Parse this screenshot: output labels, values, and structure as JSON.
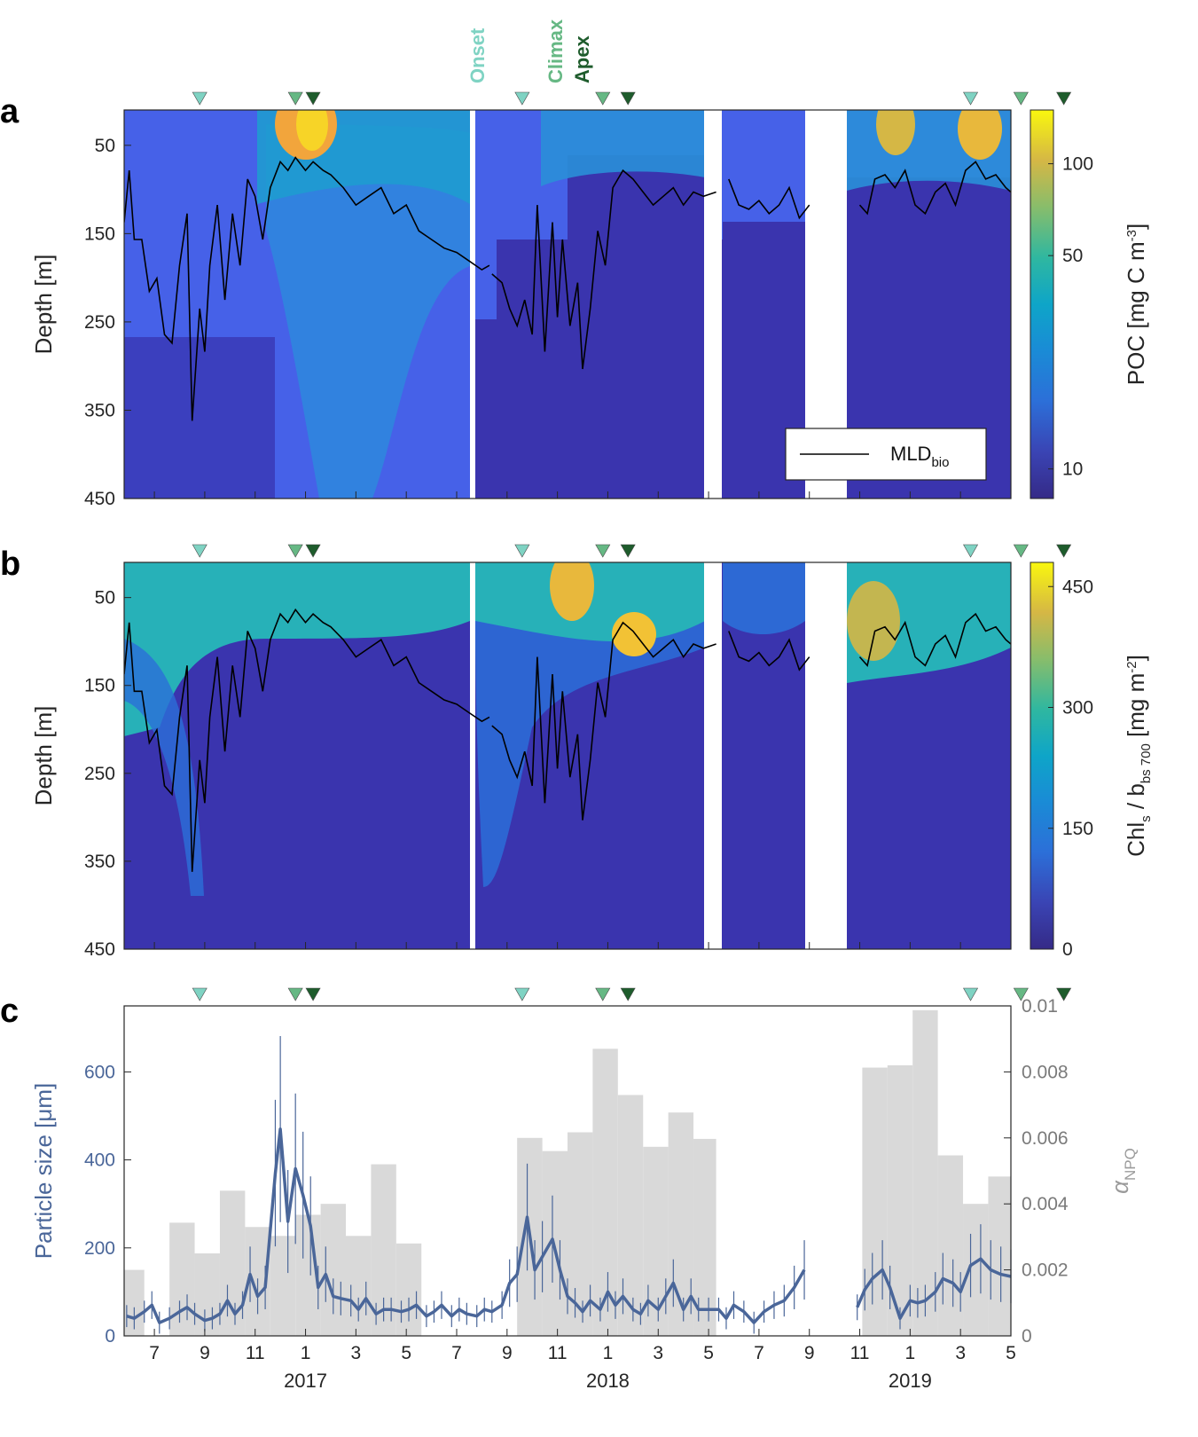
{
  "chart_data": [
    {
      "panel": "a",
      "type": "heatmap",
      "xlabel": "",
      "ylabel": "Depth [m]",
      "y_ticks": [
        "50",
        "150",
        "250",
        "350",
        "450"
      ],
      "ylim": [
        0,
        450
      ],
      "colorbar": {
        "label": "POC [mg C m",
        "label_sup": "-3",
        "label_end": "]",
        "ticks": [
          "100",
          "50",
          "10"
        ],
        "scale": "log",
        "range": [
          8,
          150
        ]
      },
      "legend": {
        "text": "MLD",
        "sub": "bio"
      },
      "event_labels": {
        "onset": "Onset",
        "climax": "Climax",
        "apex": "Apex"
      }
    },
    {
      "panel": "b",
      "type": "heatmap",
      "xlabel": "",
      "ylabel": "Depth [m]",
      "y_ticks": [
        "50",
        "150",
        "250",
        "350",
        "450"
      ],
      "ylim": [
        0,
        450
      ],
      "colorbar": {
        "label_parts": [
          "Chl",
          "s",
          " / b",
          "bs 700",
          " [mg m",
          "-2",
          "]"
        ],
        "ticks": [
          "450",
          "300",
          "150",
          "0"
        ],
        "range": [
          0,
          480
        ]
      }
    },
    {
      "panel": "c",
      "type": "bar",
      "ylabel_left": "Particle size [μm]",
      "ylabel_right_main": "α",
      "ylabel_right_sub": "NPQ",
      "y_ticks_left": [
        "0",
        "200",
        "400",
        "600"
      ],
      "y_ticks_right": [
        "0",
        "0.002",
        "0.004",
        "0.006",
        "0.008",
        "0.01"
      ],
      "ylim_left": [
        0,
        750
      ],
      "ylim_right": [
        0,
        0.01
      ],
      "x_ticks": [
        "7",
        "9",
        "11",
        "1",
        "3",
        "5",
        "7",
        "9",
        "11",
        "1",
        "3",
        "5",
        "7",
        "9",
        "11",
        "1",
        "3",
        "5"
      ],
      "years": [
        "2017",
        "2018",
        "2019"
      ],
      "npq_bars": [
        {
          "start": 5.8,
          "end": 6.6,
          "value": 0.002
        },
        {
          "start": 7.6,
          "end": 8.6,
          "value": 0.00343
        },
        {
          "start": 8.6,
          "end": 9.6,
          "value": 0.0025
        },
        {
          "start": 9.6,
          "end": 10.6,
          "value": 0.0044
        },
        {
          "start": 10.6,
          "end": 11.6,
          "value": 0.0033
        },
        {
          "start": 11.6,
          "end": 12.6,
          "value": 0.00303
        },
        {
          "start": 12.6,
          "end": 13.6,
          "value": 0.00367
        },
        {
          "start": 13.6,
          "end": 14.6,
          "value": 0.004
        },
        {
          "start": 14.6,
          "end": 15.6,
          "value": 0.00303
        },
        {
          "start": 15.6,
          "end": 16.6,
          "value": 0.0052
        },
        {
          "start": 16.6,
          "end": 17.6,
          "value": 0.0028
        },
        {
          "start": 21.4,
          "end": 22.4,
          "value": 0.006
        },
        {
          "start": 22.4,
          "end": 23.4,
          "value": 0.0056
        },
        {
          "start": 23.4,
          "end": 24.4,
          "value": 0.00617
        },
        {
          "start": 24.4,
          "end": 25.4,
          "value": 0.0087
        },
        {
          "start": 25.4,
          "end": 26.4,
          "value": 0.0073
        },
        {
          "start": 26.4,
          "end": 27.4,
          "value": 0.00573
        },
        {
          "start": 27.4,
          "end": 28.4,
          "value": 0.00677
        },
        {
          "start": 28.4,
          "end": 29.3,
          "value": 0.00597
        },
        {
          "start": 35.1,
          "end": 36.1,
          "value": 0.00813
        },
        {
          "start": 36.1,
          "end": 37.1,
          "value": 0.0082
        },
        {
          "start": 37.1,
          "end": 38.1,
          "value": 0.00987
        },
        {
          "start": 38.1,
          "end": 39.1,
          "value": 0.00547
        },
        {
          "start": 39.1,
          "end": 40.1,
          "value": 0.004
        },
        {
          "start": 40.1,
          "end": 41.0,
          "value": 0.00483
        }
      ],
      "particle_size_series": {
        "months": [
          5.9,
          6.2,
          6.6,
          6.9,
          7.2,
          7.6,
          8.0,
          8.3,
          8.6,
          9.0,
          9.3,
          9.6,
          9.9,
          10.2,
          10.5,
          10.8,
          11.1,
          11.4,
          11.8,
          12.0,
          12.3,
          12.6,
          12.9,
          13.2,
          13.5,
          13.8,
          14.1,
          14.4,
          14.8,
          15.1,
          15.4,
          15.8,
          16.1,
          16.4,
          16.8,
          17.1,
          17.4,
          17.8,
          18.1,
          18.4,
          18.8,
          19.1,
          19.4,
          19.8,
          20.1,
          20.4,
          20.8,
          21.1,
          21.4,
          21.8,
          22.1,
          22.4,
          22.8,
          23.1,
          23.4,
          23.7,
          24.0,
          24.3,
          24.7,
          25.0,
          25.3,
          25.6,
          26.0,
          26.3,
          26.6,
          27.0,
          27.3,
          27.6,
          28.0,
          28.3,
          28.6,
          29.0,
          29.4,
          29.7,
          30.0,
          30.4,
          30.8,
          31.2,
          31.6,
          32.0,
          32.4,
          32.8,
          34.9,
          35.2,
          35.5,
          35.9,
          36.2,
          36.6,
          37.0,
          37.3,
          37.6,
          38.0,
          38.3,
          38.7,
          39.0,
          39.4,
          39.8,
          40.2,
          40.6,
          41.0
        ],
        "values": [
          45,
          40,
          55,
          70,
          30,
          40,
          55,
          65,
          50,
          35,
          40,
          50,
          80,
          50,
          70,
          140,
          90,
          110,
          370,
          470,
          260,
          380,
          320,
          250,
          110,
          140,
          90,
          85,
          80,
          60,
          85,
          50,
          60,
          60,
          55,
          60,
          70,
          45,
          55,
          70,
          45,
          60,
          50,
          45,
          60,
          55,
          70,
          120,
          140,
          270,
          150,
          180,
          220,
          150,
          90,
          75,
          55,
          80,
          60,
          100,
          70,
          90,
          60,
          50,
          80,
          60,
          90,
          120,
          60,
          90,
          60,
          60,
          60,
          40,
          70,
          55,
          30,
          55,
          70,
          80,
          110,
          150,
          65,
          105,
          130,
          150,
          110,
          40,
          80,
          75,
          80,
          100,
          130,
          120,
          100,
          160,
          175,
          150,
          140,
          135
        ]
      },
      "event_labels": {
        "onset": "Onset",
        "climax": "Climax",
        "apex": "Apex"
      }
    }
  ],
  "events": {
    "onset_months": [
      8.8,
      21.6,
      39.4
    ],
    "climax_months": [
      12.6,
      24.8,
      41.4
    ],
    "apex_months": [
      13.3,
      25.8,
      43.1
    ]
  },
  "colors": {
    "onset": "#7fd3c3",
    "climax": "#66b884",
    "apex": "#1e5c2c",
    "npq_bar": "#d9d9d9",
    "particle_line": "#4a6699",
    "mld_line": "#000000"
  }
}
